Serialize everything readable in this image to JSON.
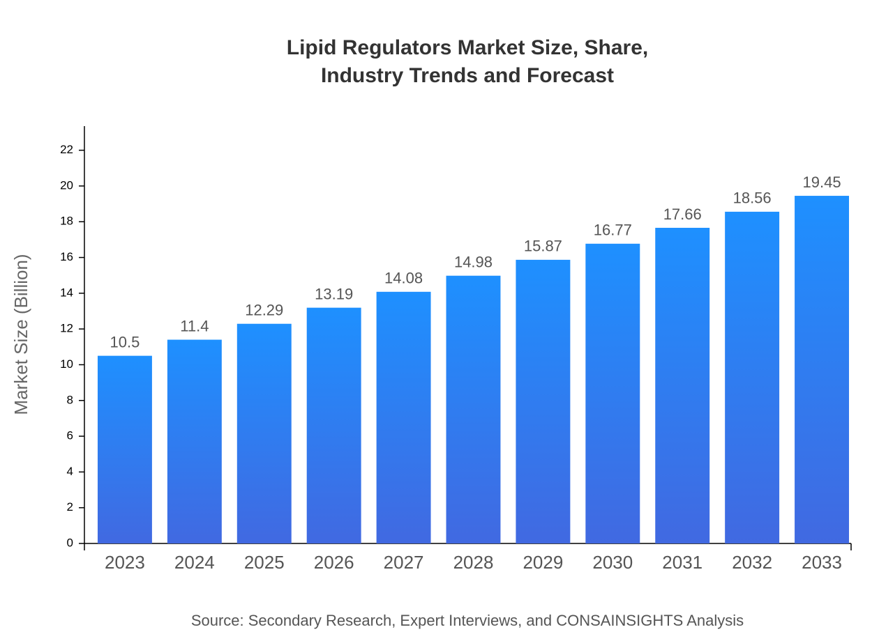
{
  "chart_data": {
    "type": "bar",
    "title": [
      "Lipid Regulators Market Size, Share,",
      "Industry Trends and Forecast"
    ],
    "y_label": "Market Size (Billion)",
    "source": "Source: Secondary Research, Expert Interviews, and CONSAINSIGHTS Analysis",
    "categories": [
      "2023",
      "2024",
      "2025",
      "2026",
      "2027",
      "2028",
      "2029",
      "2030",
      "2031",
      "2032",
      "2033"
    ],
    "values": [
      10.5,
      11.4,
      12.29,
      13.19,
      14.08,
      14.98,
      15.87,
      16.77,
      17.66,
      18.56,
      19.45
    ],
    "color_top": "#1e90ff",
    "color_bottom": "#4169e1",
    "ylim": [
      0,
      23.35
    ],
    "yticks": [
      0,
      2,
      4,
      6,
      8,
      10,
      12,
      14,
      16,
      18,
      20,
      22
    ],
    "grid": false
  }
}
